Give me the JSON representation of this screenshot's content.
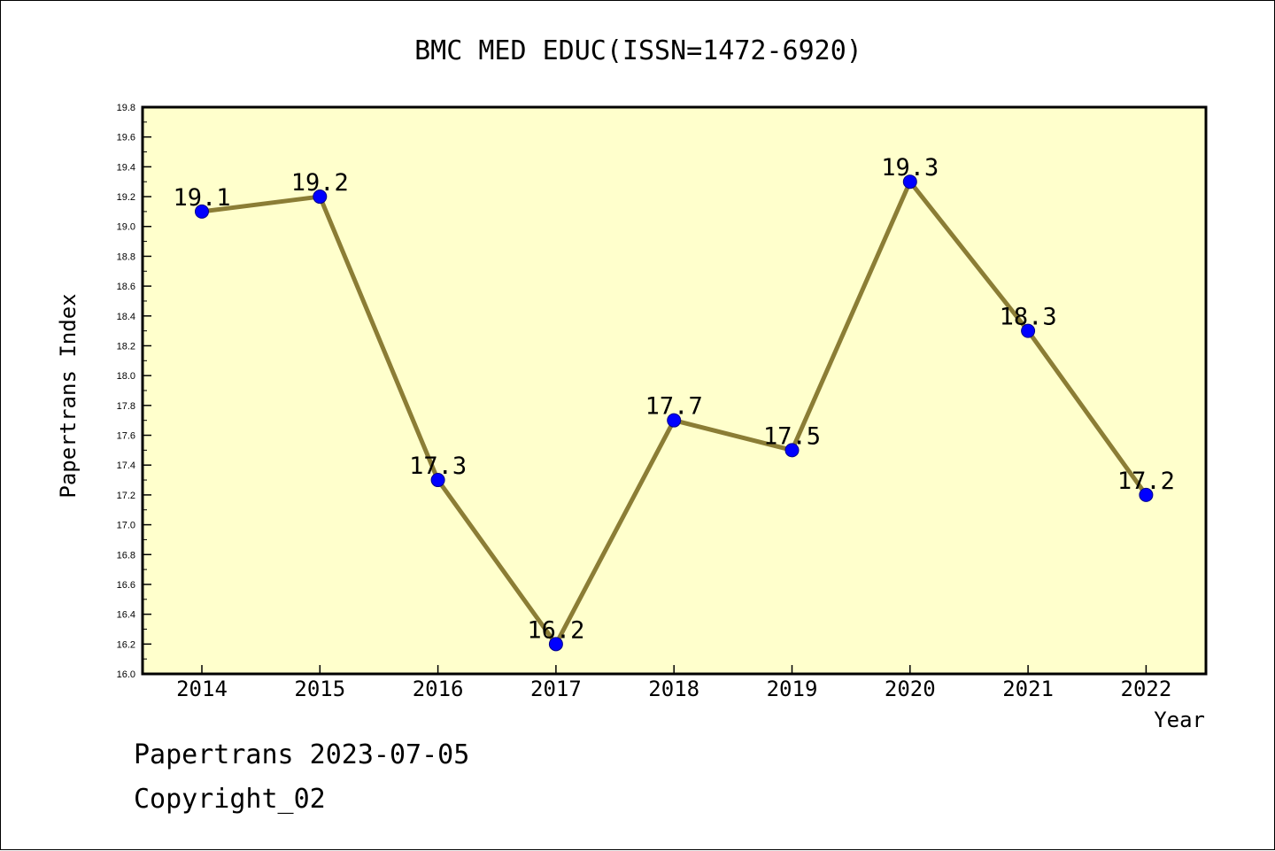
{
  "chart_data": {
    "type": "line",
    "title": "BMC MED EDUC(ISSN=1472-6920)",
    "xlabel": "Year",
    "ylabel": "Papertrans Index",
    "categories": [
      "2014",
      "2015",
      "2016",
      "2017",
      "2018",
      "2019",
      "2020",
      "2021",
      "2022"
    ],
    "series": [
      {
        "values": [
          19.1,
          19.2,
          17.3,
          16.2,
          17.7,
          17.5,
          19.3,
          18.3,
          17.2
        ],
        "labels": [
          "19.1",
          "19.2",
          "17.3",
          "16.2",
          "17.7",
          "17.5",
          "19.3",
          "18.3",
          "17.2"
        ]
      }
    ],
    "ylim": [
      16.0,
      19.8
    ],
    "yticks": [
      "16.0",
      "16.2",
      "16.4",
      "16.6",
      "16.8",
      "17.0",
      "17.2",
      "17.4",
      "17.6",
      "17.8",
      "18.0",
      "18.2",
      "18.4",
      "18.6",
      "18.8",
      "19.0",
      "19.2",
      "19.4",
      "19.6",
      "19.8"
    ],
    "grid": false,
    "colors": {
      "plot_background": "#ffffcc",
      "line": "#8b7d35",
      "marker": "#0000ff"
    }
  },
  "footer": {
    "line1": "Papertrans 2023-07-05",
    "line2": "Copyright_02"
  }
}
